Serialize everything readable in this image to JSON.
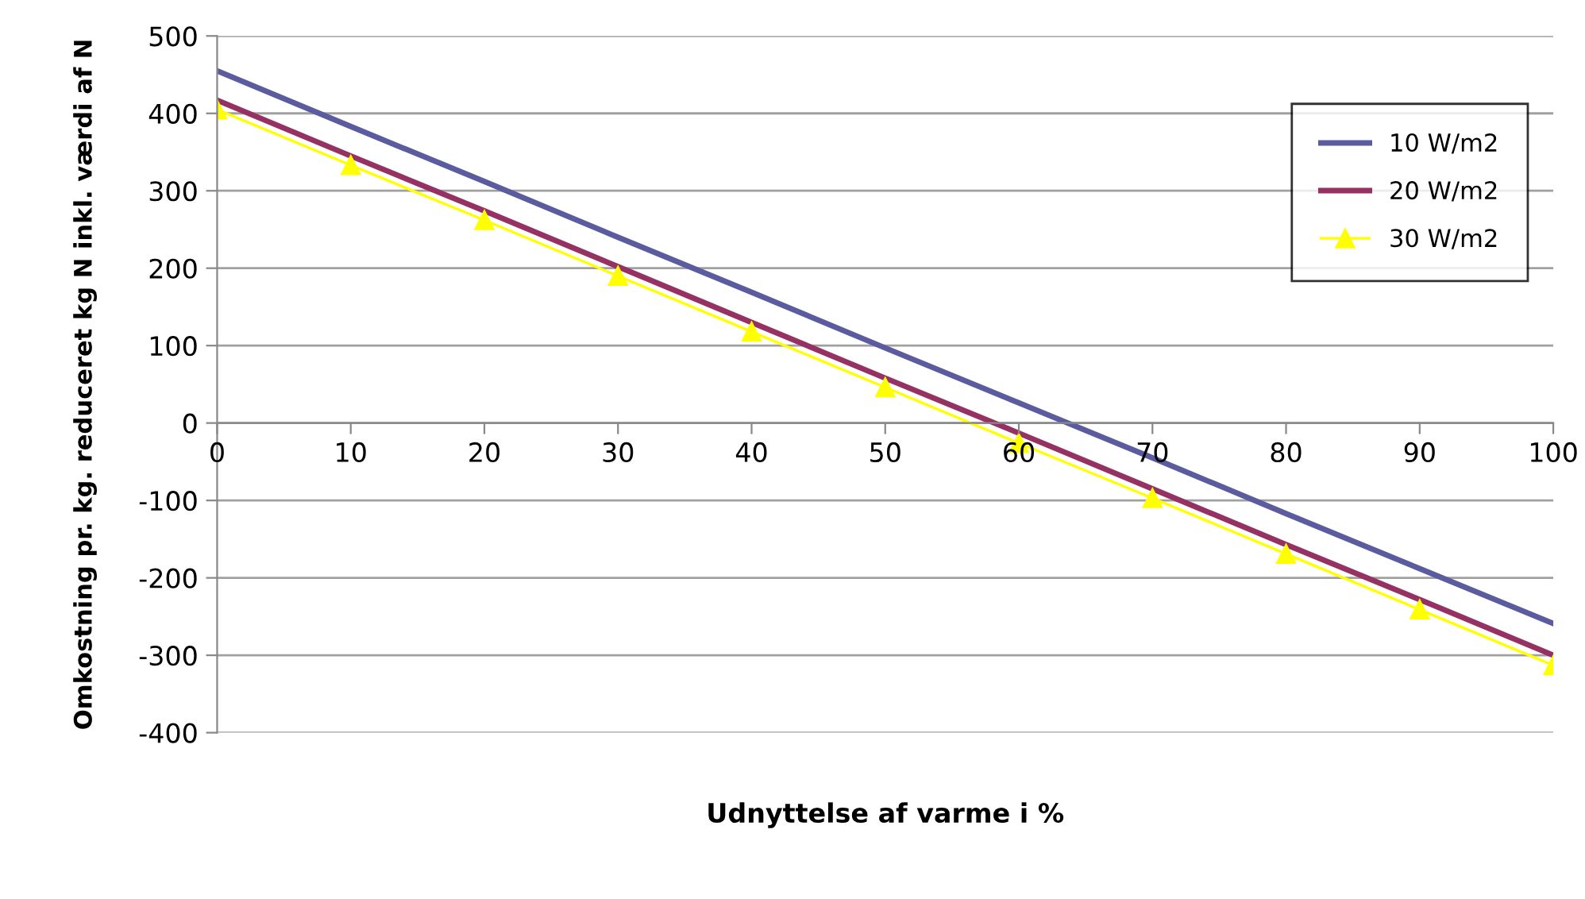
{
  "chart_data": {
    "type": "line",
    "xlabel": "Udnyttelse af varme i %",
    "ylabel": "Omkostning pr. kg. reduceret kg N inkl. værdi af N",
    "x": [
      0,
      10,
      20,
      30,
      40,
      50,
      60,
      70,
      80,
      90,
      100
    ],
    "series": [
      {
        "name": "10 W/m2",
        "color": "#5b5b9f",
        "marker": "none",
        "values": [
          455,
          383,
          312,
          240,
          169,
          97,
          26,
          -45,
          -117,
          -188,
          -259
        ]
      },
      {
        "name": "20 W/m2",
        "color": "#953163",
        "marker": "none",
        "values": [
          417,
          345,
          274,
          202,
          130,
          58,
          -13,
          -85,
          -157,
          -228,
          -300
        ]
      },
      {
        "name": "30 W/m2",
        "color": "#ffff00",
        "marker": "triangle",
        "values": [
          405,
          333,
          262,
          190,
          118,
          46,
          -26,
          -97,
          -169,
          -241,
          -313
        ]
      }
    ],
    "xlim": [
      0,
      100
    ],
    "xticks": [
      0,
      10,
      20,
      30,
      40,
      50,
      60,
      70,
      80,
      90,
      100
    ],
    "ylim": [
      -400,
      500
    ],
    "yticks": [
      -400,
      -300,
      -200,
      -100,
      0,
      100,
      200,
      300,
      400,
      500
    ],
    "grid": "y",
    "legend": "top right",
    "line_style": "solid"
  }
}
